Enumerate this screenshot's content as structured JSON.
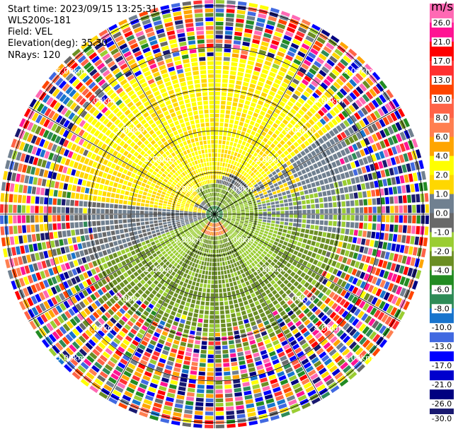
{
  "header": {
    "start_time": "Start time: 2023/09/15 13:25:31",
    "instrument": "WLS200s-181",
    "field": "Field: VEL",
    "elevation": "Elevation(deg): 35.30",
    "nrays": "NRays: 120"
  },
  "chart_data": {
    "type": "heatmap",
    "projection": "polar-ppi",
    "field": "VEL",
    "n_rays": 120,
    "range_rings_km": [
      1,
      2,
      3,
      4,
      5
    ],
    "range_ring_labels": [
      "1.00km",
      "2.00km",
      "3.00km",
      "4.00km",
      "5.00km"
    ],
    "spoke_interval_deg": 30,
    "colorbar": {
      "unit": "m/s",
      "labels": [
        "26.0",
        "21.0",
        "17.0",
        "13.0",
        "10.0",
        "8.0",
        "6.0",
        "4.0",
        "2.0",
        "1.0",
        "0.0",
        "-1.0",
        "-2.0",
        "-4.0",
        "-6.0",
        "-8.0",
        "-10.0",
        "-13.0",
        "-17.0",
        "-21.0",
        "-26.0",
        "-30.0"
      ],
      "colors": [
        "#ff69b4",
        "#ff1493",
        "#ff0000",
        "#ff3030",
        "#ff4500",
        "#ff6347",
        "#ff7f50",
        "#ffa500",
        "#ffff00",
        "#ffd700",
        "#708090",
        "#696969",
        "#9acd32",
        "#6b8e23",
        "#228b22",
        "#2e8b57",
        "#1874cd",
        "#4169e1",
        "#0000ff",
        "#0000cd",
        "#000080",
        "#191970"
      ]
    }
  }
}
